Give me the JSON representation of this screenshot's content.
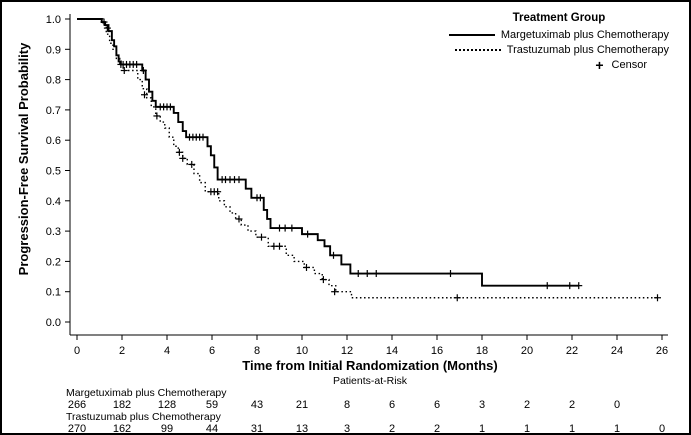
{
  "figure": {
    "y_axis_title": "Progression-Free Survival Probability",
    "x_axis_title": "Time from Initial Randomization (Months)",
    "at_risk_title": "Patients-at-Risk"
  },
  "legend": {
    "title": "Treatment Group",
    "items": [
      {
        "label": "Margetuximab plus Chemotherapy",
        "style": "solid"
      },
      {
        "label": "Trastuzumab plus Chemotherapy",
        "style": "dotted"
      },
      {
        "label": "Censor",
        "style": "plus"
      }
    ]
  },
  "chart_data": {
    "type": "line",
    "subtype": "kaplan-meier-step",
    "title": "",
    "xlabel": "Time from Initial Randomization (Months)",
    "ylabel": "Progression-Free Survival Probability",
    "xlim": [
      0,
      26
    ],
    "ylim": [
      0.0,
      1.0
    ],
    "x_ticks": [
      0,
      2,
      4,
      6,
      8,
      10,
      12,
      14,
      16,
      18,
      20,
      22,
      24,
      26
    ],
    "y_ticks": [
      0.0,
      0.1,
      0.2,
      0.3,
      0.4,
      0.5,
      0.6,
      0.7,
      0.8,
      0.9,
      1.0
    ],
    "grid": false,
    "legend_position": "top-right-inside",
    "line_color": "#000000",
    "series": [
      {
        "name": "Margetuximab plus Chemotherapy",
        "line": "solid",
        "start": [
          0,
          1.0
        ],
        "end_time": 22.3,
        "steps": [
          [
            1.1,
            0.99
          ],
          [
            1.25,
            0.98
          ],
          [
            1.4,
            0.96
          ],
          [
            1.55,
            0.93
          ],
          [
            1.65,
            0.91
          ],
          [
            1.75,
            0.88
          ],
          [
            1.85,
            0.86
          ],
          [
            1.95,
            0.85
          ],
          [
            2.9,
            0.83
          ],
          [
            3.05,
            0.8
          ],
          [
            3.2,
            0.76
          ],
          [
            3.35,
            0.73
          ],
          [
            3.5,
            0.71
          ],
          [
            4.3,
            0.69
          ],
          [
            4.5,
            0.66
          ],
          [
            4.7,
            0.63
          ],
          [
            4.85,
            0.61
          ],
          [
            5.8,
            0.58
          ],
          [
            5.95,
            0.55
          ],
          [
            6.1,
            0.51
          ],
          [
            6.25,
            0.47
          ],
          [
            7.5,
            0.44
          ],
          [
            7.75,
            0.41
          ],
          [
            8.3,
            0.37
          ],
          [
            8.45,
            0.34
          ],
          [
            8.6,
            0.31
          ],
          [
            10.0,
            0.29
          ],
          [
            10.7,
            0.27
          ],
          [
            11.0,
            0.25
          ],
          [
            11.25,
            0.22
          ],
          [
            11.75,
            0.19
          ],
          [
            12.15,
            0.16
          ],
          [
            18.0,
            0.12
          ]
        ],
        "censors": [
          [
            1.2,
            0.99
          ],
          [
            1.35,
            0.97
          ],
          [
            2.05,
            0.85
          ],
          [
            2.2,
            0.85
          ],
          [
            2.35,
            0.85
          ],
          [
            2.5,
            0.85
          ],
          [
            2.65,
            0.85
          ],
          [
            2.95,
            0.83
          ],
          [
            3.7,
            0.71
          ],
          [
            3.85,
            0.71
          ],
          [
            4.0,
            0.71
          ],
          [
            4.15,
            0.71
          ],
          [
            5.0,
            0.61
          ],
          [
            5.15,
            0.61
          ],
          [
            5.3,
            0.61
          ],
          [
            5.45,
            0.61
          ],
          [
            5.6,
            0.61
          ],
          [
            6.45,
            0.47
          ],
          [
            6.6,
            0.47
          ],
          [
            6.8,
            0.47
          ],
          [
            7.0,
            0.47
          ],
          [
            7.2,
            0.47
          ],
          [
            8.0,
            0.41
          ],
          [
            8.15,
            0.41
          ],
          [
            9.0,
            0.31
          ],
          [
            9.25,
            0.31
          ],
          [
            9.55,
            0.31
          ],
          [
            10.25,
            0.29
          ],
          [
            11.4,
            0.22
          ],
          [
            12.5,
            0.16
          ],
          [
            12.9,
            0.16
          ],
          [
            13.3,
            0.16
          ],
          [
            16.6,
            0.16
          ],
          [
            20.9,
            0.12
          ],
          [
            21.9,
            0.12
          ],
          [
            22.3,
            0.12
          ]
        ]
      },
      {
        "name": "Trastuzumab plus Chemotherapy",
        "line": "dotted",
        "start": [
          0,
          1.0
        ],
        "end_time": 25.8,
        "steps": [
          [
            1.15,
            0.98
          ],
          [
            1.3,
            0.95
          ],
          [
            1.45,
            0.92
          ],
          [
            1.6,
            0.9
          ],
          [
            1.75,
            0.87
          ],
          [
            1.9,
            0.85
          ],
          [
            2.05,
            0.83
          ],
          [
            2.7,
            0.8
          ],
          [
            2.9,
            0.77
          ],
          [
            3.1,
            0.74
          ],
          [
            3.3,
            0.71
          ],
          [
            3.5,
            0.68
          ],
          [
            3.7,
            0.66
          ],
          [
            3.9,
            0.64
          ],
          [
            4.1,
            0.61
          ],
          [
            4.3,
            0.58
          ],
          [
            4.5,
            0.56
          ],
          [
            4.7,
            0.54
          ],
          [
            4.9,
            0.52
          ],
          [
            5.2,
            0.49
          ],
          [
            5.45,
            0.46
          ],
          [
            5.7,
            0.43
          ],
          [
            6.3,
            0.4
          ],
          [
            6.55,
            0.38
          ],
          [
            6.8,
            0.36
          ],
          [
            7.05,
            0.34
          ],
          [
            7.3,
            0.32
          ],
          [
            7.6,
            0.3
          ],
          [
            7.95,
            0.28
          ],
          [
            8.5,
            0.25
          ],
          [
            9.3,
            0.22
          ],
          [
            9.65,
            0.2
          ],
          [
            10.1,
            0.18
          ],
          [
            10.55,
            0.16
          ],
          [
            10.9,
            0.14
          ],
          [
            11.2,
            0.12
          ],
          [
            11.5,
            0.1
          ],
          [
            12.2,
            0.08
          ]
        ],
        "censors": [
          [
            1.95,
            0.85
          ],
          [
            2.1,
            0.83
          ],
          [
            3.0,
            0.75
          ],
          [
            3.55,
            0.68
          ],
          [
            4.55,
            0.56
          ],
          [
            4.7,
            0.54
          ],
          [
            5.1,
            0.52
          ],
          [
            5.95,
            0.43
          ],
          [
            6.1,
            0.43
          ],
          [
            6.25,
            0.43
          ],
          [
            7.2,
            0.34
          ],
          [
            8.2,
            0.28
          ],
          [
            8.75,
            0.25
          ],
          [
            9.0,
            0.25
          ],
          [
            10.2,
            0.18
          ],
          [
            10.95,
            0.14
          ],
          [
            11.45,
            0.1
          ],
          [
            16.9,
            0.08
          ],
          [
            25.8,
            0.08
          ]
        ]
      }
    ],
    "at_risk": {
      "title": "Patients-at-Risk",
      "times": [
        0,
        2,
        4,
        6,
        8,
        10,
        12,
        14,
        16,
        18,
        20,
        22,
        24,
        26
      ],
      "rows": [
        {
          "label": "Margetuximab plus Chemotherapy",
          "counts": [
            266,
            182,
            128,
            59,
            43,
            21,
            8,
            6,
            6,
            3,
            2,
            2,
            0
          ]
        },
        {
          "label": "Trastuzumab plus Chemotherapy",
          "counts": [
            270,
            162,
            99,
            44,
            31,
            13,
            3,
            2,
            2,
            1,
            1,
            1,
            1,
            0
          ]
        }
      ]
    }
  }
}
